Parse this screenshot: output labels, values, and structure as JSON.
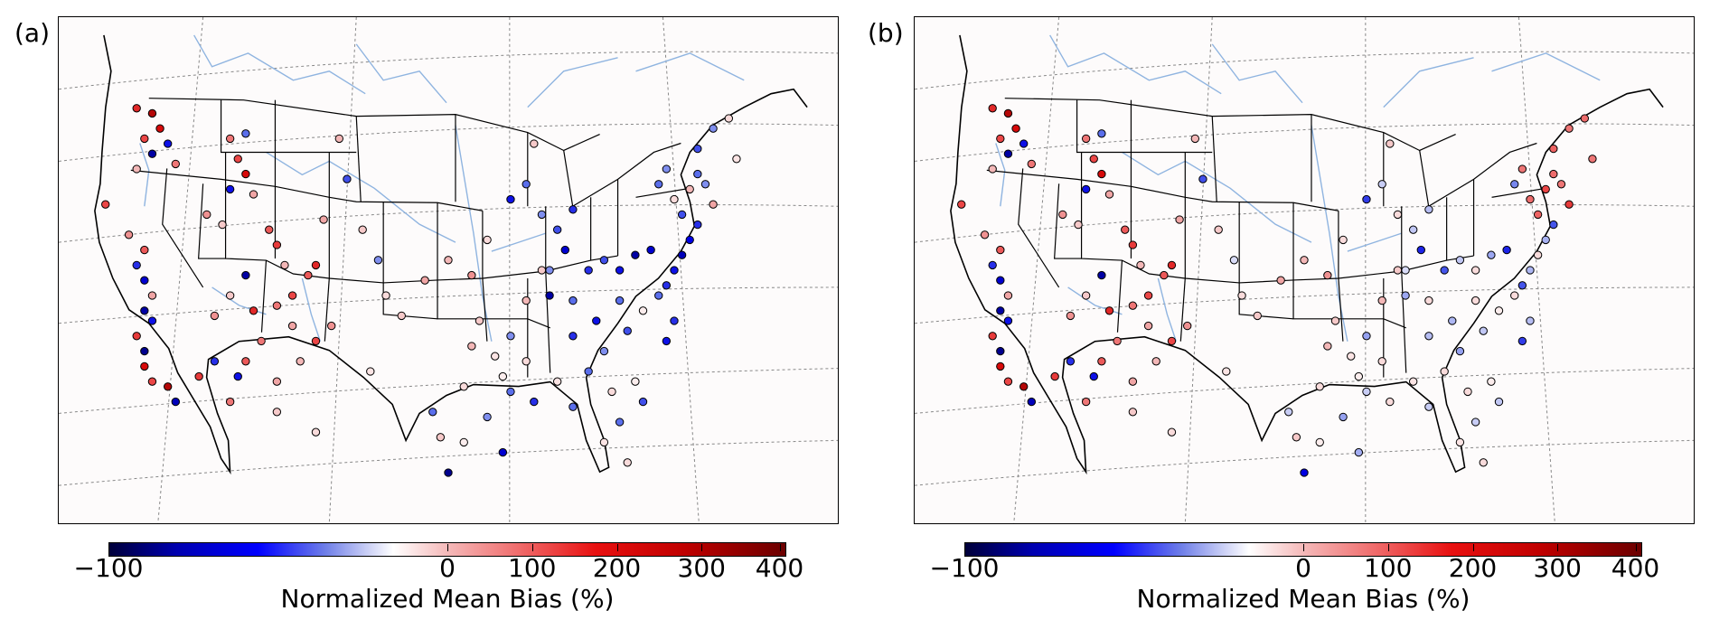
{
  "panels": [
    {
      "label": "(a)",
      "colorbar": {
        "ticks": [
          "−100",
          "0",
          "100",
          "200",
          "300",
          "400"
        ],
        "title": "Normalized Mean Bias (%)"
      }
    },
    {
      "label": "(b)",
      "colorbar": {
        "ticks": [
          "−100",
          "0",
          "100",
          "200",
          "300",
          "400"
        ],
        "title": "Normalized Mean Bias (%)"
      }
    }
  ],
  "colors": {
    "negative": "#0000ff",
    "neutral": "#ffffff",
    "positive": "#ff0000",
    "river": "#8fb4e0",
    "grid": "#888888"
  }
}
